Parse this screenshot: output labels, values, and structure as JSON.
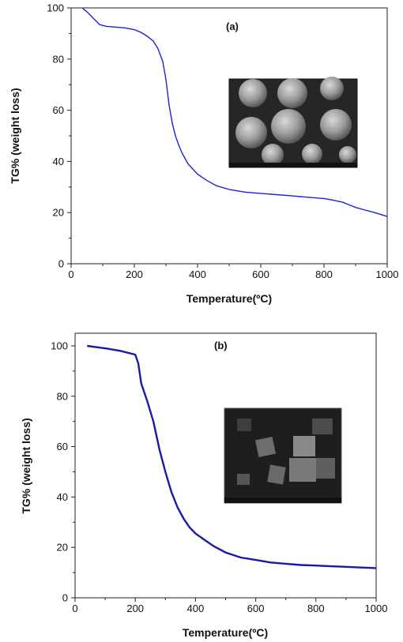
{
  "chart_data": [
    {
      "type": "line",
      "panel_label": "(a)",
      "xlabel": "Temperature(ºC)",
      "ylabel": "TG% (weight loss)",
      "xlim": [
        0,
        1000
      ],
      "ylim": [
        0,
        100
      ],
      "x_ticks": [
        "0",
        "200",
        "400",
        "600",
        "800",
        "1000"
      ],
      "y_ticks": [
        "0",
        "20",
        "40",
        "60",
        "80",
        "100"
      ],
      "grid": false,
      "line_color": "#1f1fe0",
      "inset_image": "SEM micrograph of spherical particles",
      "series": [
        {
          "x": [
            35,
            50,
            70,
            90,
            110,
            140,
            170,
            200,
            220,
            240,
            260,
            275,
            290,
            300,
            310,
            320,
            330,
            340,
            350,
            370,
            400,
            430,
            460,
            500,
            550,
            600,
            650,
            700,
            750,
            800,
            830,
            860,
            880,
            900,
            930,
            960,
            1000
          ],
          "y": [
            100,
            98.5,
            96,
            93.5,
            92.8,
            92.5,
            92.2,
            91.5,
            90.5,
            89,
            87,
            84,
            79,
            72,
            62,
            55,
            50,
            46.5,
            43.5,
            39,
            35,
            32.5,
            30.5,
            29,
            28,
            27.5,
            27,
            26.5,
            26,
            25.5,
            24.8,
            24,
            23,
            22,
            21,
            20,
            18.5
          ]
        }
      ]
    },
    {
      "type": "line",
      "panel_label": "(b)",
      "xlabel": "Temperature(ºC)",
      "ylabel": "TG% (weight loss)",
      "xlim": [
        0,
        1000
      ],
      "ylim": [
        0,
        105
      ],
      "x_ticks": [
        "0",
        "200",
        "400",
        "600",
        "800",
        "1000"
      ],
      "y_ticks": [
        "0",
        "20",
        "40",
        "60",
        "80",
        "100"
      ],
      "grid": false,
      "line_color": "#1a1aa8",
      "inset_image": "SEM micrograph of cubic crystals",
      "series": [
        {
          "x": [
            40,
            100,
            150,
            200,
            210,
            220,
            240,
            260,
            280,
            300,
            320,
            340,
            360,
            380,
            400,
            430,
            460,
            500,
            550,
            600,
            650,
            700,
            750,
            800,
            850,
            900,
            950,
            1000
          ],
          "y": [
            100,
            99,
            98,
            96.5,
            93,
            85,
            78,
            70,
            59,
            50,
            42,
            36,
            31.5,
            28,
            25.5,
            23,
            20.5,
            18,
            16,
            15,
            14,
            13.5,
            13,
            12.8,
            12.5,
            12.3,
            12,
            11.8
          ]
        }
      ]
    }
  ]
}
